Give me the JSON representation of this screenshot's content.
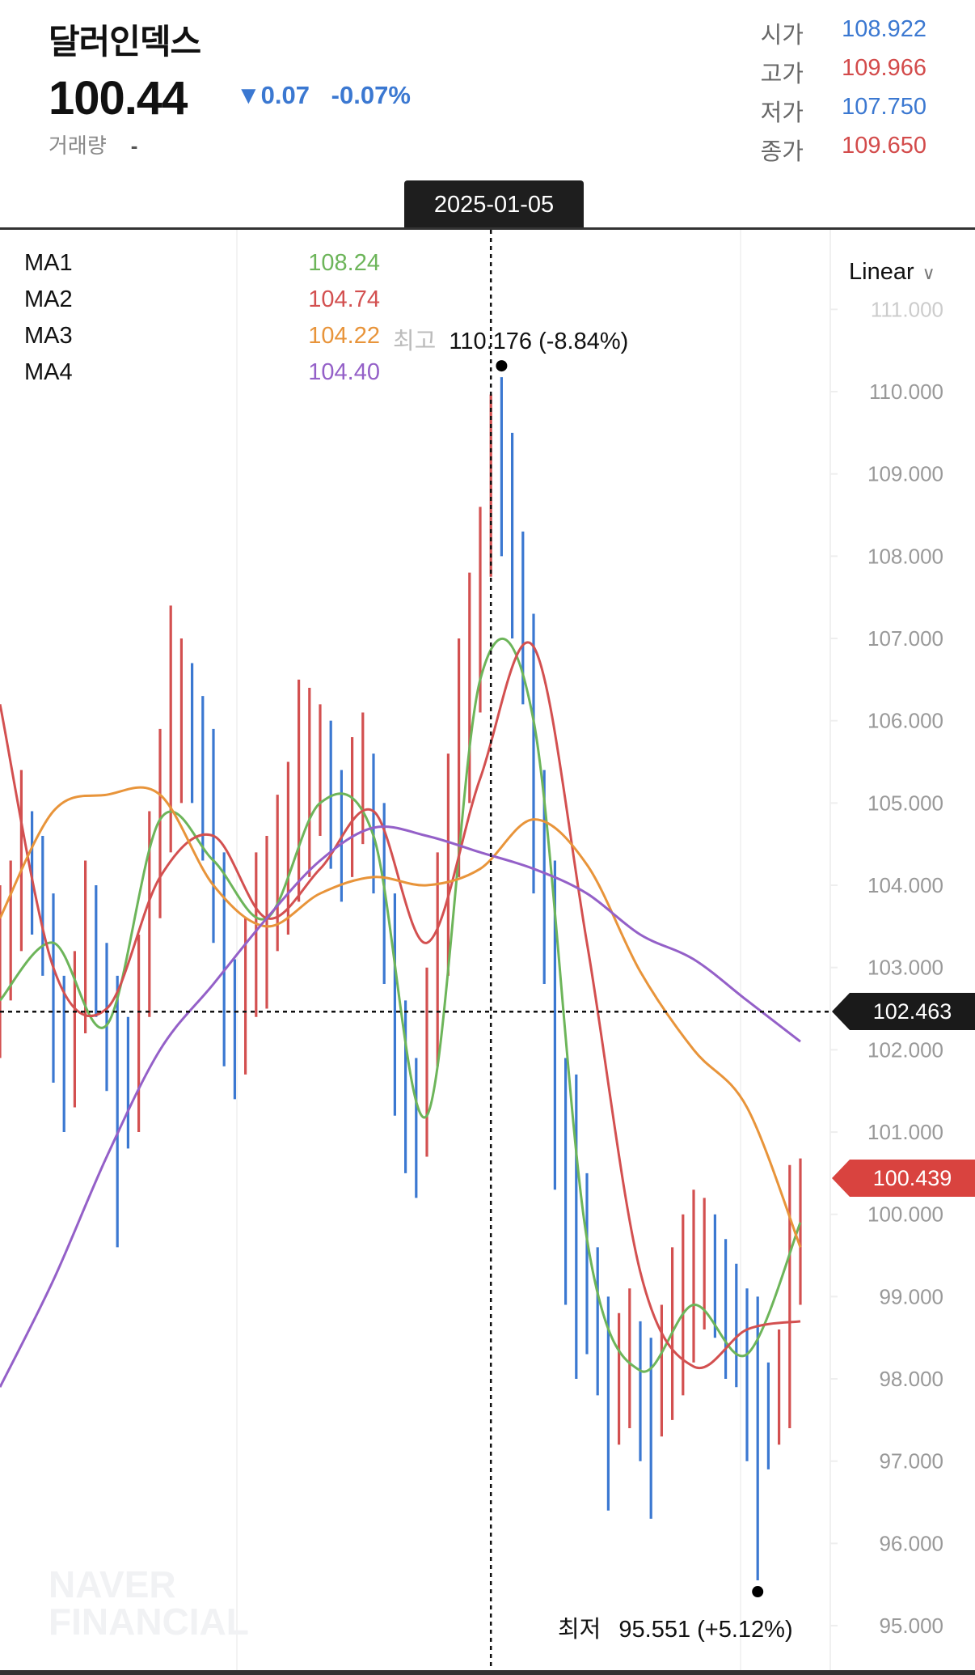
{
  "header": {
    "title": "달러인덱스",
    "price": "100.44",
    "change": "▼0.07",
    "change_pct": "-0.07%",
    "volume_label": "거래량",
    "volume_value": "-",
    "ohlc": [
      {
        "label": "시가",
        "value": "108.922",
        "color": "#3b78d1"
      },
      {
        "label": "고가",
        "value": "109.966",
        "color": "#d34b4b"
      },
      {
        "label": "저가",
        "value": "107.750",
        "color": "#3b78d1"
      },
      {
        "label": "종가",
        "value": "109.650",
        "color": "#d34b4b"
      }
    ]
  },
  "crosshair": {
    "date": "2025-01-05",
    "price": "102.463"
  },
  "scale_mode": "Linear",
  "last_price_tag": "100.439",
  "ma_legend": [
    {
      "label": "MA1",
      "value": "108.24",
      "color": "#6db55a"
    },
    {
      "label": "MA2",
      "value": "104.74",
      "color": "#d35050"
    },
    {
      "label": "MA3",
      "value": "104.22",
      "color": "#e8943a"
    },
    {
      "label": "MA4",
      "value": "104.40",
      "color": "#9460c8"
    }
  ],
  "annotations": {
    "high_label": "최고",
    "high_text": "110.176 (-8.84%)",
    "low_label": "최저",
    "low_text": "95.551 (+5.12%)"
  },
  "watermark": [
    "NAVER",
    "FINANCIAL"
  ],
  "colors": {
    "up": "#d35050",
    "down": "#3b78d1",
    "tag_black": "#1a1a1a",
    "tag_red": "#d9433f"
  },
  "chart_data": {
    "type": "ohlc",
    "yaxis_ticks": [
      "111.000",
      "110.000",
      "109.000",
      "108.000",
      "107.000",
      "106.000",
      "105.000",
      "104.000",
      "103.000",
      "102.000",
      "101.000",
      "100.000",
      "99.000",
      "98.000",
      "97.000",
      "96.000",
      "95.000"
    ],
    "ylim": [
      95,
      111
    ],
    "grid": "vertical-only",
    "crosshair_index": 46,
    "high_index": 47,
    "low_index": 71,
    "bars_ohlc": [
      [
        102.6,
        104.0,
        101.9,
        103.0
      ],
      [
        103.0,
        104.3,
        102.6,
        103.6
      ],
      [
        103.6,
        105.4,
        103.2,
        104.3
      ],
      [
        104.3,
        104.9,
        103.4,
        104.0
      ],
      [
        104.0,
        104.6,
        102.9,
        103.5
      ],
      [
        103.5,
        103.9,
        101.6,
        102.6
      ],
      [
        102.6,
        102.9,
        101.0,
        101.8
      ],
      [
        101.8,
        103.2,
        101.3,
        102.6
      ],
      [
        102.6,
        104.3,
        102.2,
        103.5
      ],
      [
        103.5,
        104.0,
        102.4,
        103.0
      ],
      [
        103.0,
        103.3,
        101.5,
        102.5
      ],
      [
        102.5,
        102.9,
        99.6,
        101.9
      ],
      [
        101.9,
        102.4,
        100.8,
        101.4
      ],
      [
        101.4,
        103.4,
        101.0,
        102.7
      ],
      [
        102.7,
        104.9,
        102.4,
        104.0
      ],
      [
        104.0,
        105.9,
        103.6,
        104.8
      ],
      [
        104.8,
        107.4,
        104.4,
        105.5
      ],
      [
        105.5,
        107.0,
        105.0,
        106.0
      ],
      [
        106.0,
        106.7,
        105.0,
        105.8
      ],
      [
        105.8,
        106.3,
        104.3,
        105.5
      ],
      [
        105.5,
        105.9,
        103.3,
        104.0
      ],
      [
        104.0,
        104.4,
        101.8,
        102.5
      ],
      [
        102.5,
        103.1,
        101.4,
        102.0
      ],
      [
        102.0,
        103.6,
        101.7,
        102.8
      ],
      [
        102.8,
        104.4,
        102.4,
        103.5
      ],
      [
        103.5,
        104.6,
        102.5,
        103.6
      ],
      [
        103.6,
        105.1,
        103.2,
        103.8
      ],
      [
        103.8,
        105.5,
        103.4,
        104.2
      ],
      [
        104.2,
        106.5,
        103.8,
        104.5
      ],
      [
        104.5,
        106.4,
        104.1,
        105.0
      ],
      [
        105.0,
        106.2,
        104.6,
        105.6
      ],
      [
        105.6,
        106.0,
        104.2,
        105.0
      ],
      [
        105.0,
        105.4,
        103.8,
        104.5
      ],
      [
        104.5,
        105.8,
        104.1,
        104.9
      ],
      [
        104.9,
        106.1,
        104.5,
        105.3
      ],
      [
        105.3,
        105.6,
        103.9,
        104.6
      ],
      [
        104.6,
        105.0,
        102.8,
        103.5
      ],
      [
        103.5,
        103.9,
        101.2,
        102.0
      ],
      [
        102.0,
        102.6,
        100.5,
        101.4
      ],
      [
        101.4,
        101.9,
        100.2,
        101.0
      ],
      [
        101.0,
        103.0,
        100.7,
        102.0
      ],
      [
        102.0,
        104.4,
        101.8,
        103.2
      ],
      [
        103.2,
        105.6,
        102.9,
        104.5
      ],
      [
        104.5,
        107.0,
        104.1,
        105.5
      ],
      [
        105.5,
        107.8,
        105.0,
        106.5
      ],
      [
        106.5,
        108.6,
        106.1,
        108.0
      ],
      [
        108.922,
        109.966,
        107.75,
        109.65
      ],
      [
        109.65,
        110.176,
        108.0,
        108.7
      ],
      [
        108.7,
        109.5,
        107.0,
        108.0
      ],
      [
        108.0,
        108.3,
        106.2,
        107.0
      ],
      [
        107.0,
        107.3,
        103.9,
        105.0
      ],
      [
        105.0,
        105.4,
        102.8,
        104.0
      ],
      [
        104.0,
        104.3,
        100.3,
        101.5
      ],
      [
        101.5,
        101.9,
        98.9,
        100.5
      ],
      [
        100.5,
        101.7,
        98.0,
        99.8
      ],
      [
        99.8,
        100.5,
        98.3,
        98.8
      ],
      [
        98.8,
        99.6,
        97.8,
        98.5
      ],
      [
        98.5,
        99.0,
        96.4,
        97.8
      ],
      [
        97.8,
        98.8,
        97.2,
        98.0
      ],
      [
        98.0,
        99.1,
        97.4,
        98.2
      ],
      [
        98.2,
        98.7,
        97.0,
        98.0
      ],
      [
        98.0,
        98.5,
        96.3,
        97.7
      ],
      [
        97.7,
        98.9,
        97.3,
        97.9
      ],
      [
        97.9,
        99.6,
        97.5,
        98.0
      ],
      [
        98.0,
        100.0,
        97.8,
        98.5
      ],
      [
        98.5,
        100.3,
        98.2,
        99.0
      ],
      [
        99.0,
        100.2,
        98.6,
        99.6
      ],
      [
        99.6,
        100.0,
        98.5,
        99.3
      ],
      [
        99.3,
        99.7,
        98.0,
        98.8
      ],
      [
        98.8,
        99.4,
        97.9,
        98.5
      ],
      [
        98.5,
        99.1,
        97.0,
        98.2
      ],
      [
        98.2,
        99.0,
        95.551,
        97.8
      ],
      [
        97.8,
        98.2,
        96.9,
        97.4
      ],
      [
        97.4,
        98.6,
        97.2,
        97.6
      ],
      [
        97.6,
        100.6,
        97.4,
        99.0
      ],
      [
        99.0,
        100.68,
        98.9,
        100.439
      ]
    ],
    "ma_sample_step": 5,
    "ma_series": [
      {
        "name": "MA1",
        "values": [
          102.6,
          103.3,
          102.3,
          104.8,
          104.3,
          103.6,
          105.0,
          104.6,
          101.2,
          106.5,
          106.0,
          99.7,
          98.1,
          98.9,
          98.3,
          99.9
        ]
      },
      {
        "name": "MA2",
        "values": [
          106.2,
          103.0,
          102.5,
          104.1,
          104.6,
          103.6,
          104.2,
          104.9,
          103.3,
          105.3,
          106.9,
          103.3,
          99.3,
          98.15,
          98.6,
          98.7
        ]
      },
      {
        "name": "MA3",
        "values": [
          103.6,
          104.9,
          105.1,
          105.1,
          104.0,
          103.5,
          103.9,
          104.1,
          104.0,
          104.2,
          104.8,
          104.25,
          102.95,
          102.0,
          101.3,
          99.6
        ]
      },
      {
        "name": "MA4",
        "values": [
          97.9,
          99.2,
          100.7,
          102.0,
          102.8,
          103.6,
          104.3,
          104.7,
          104.6,
          104.4,
          104.2,
          103.9,
          103.4,
          103.1,
          102.6,
          102.1
        ]
      }
    ]
  }
}
